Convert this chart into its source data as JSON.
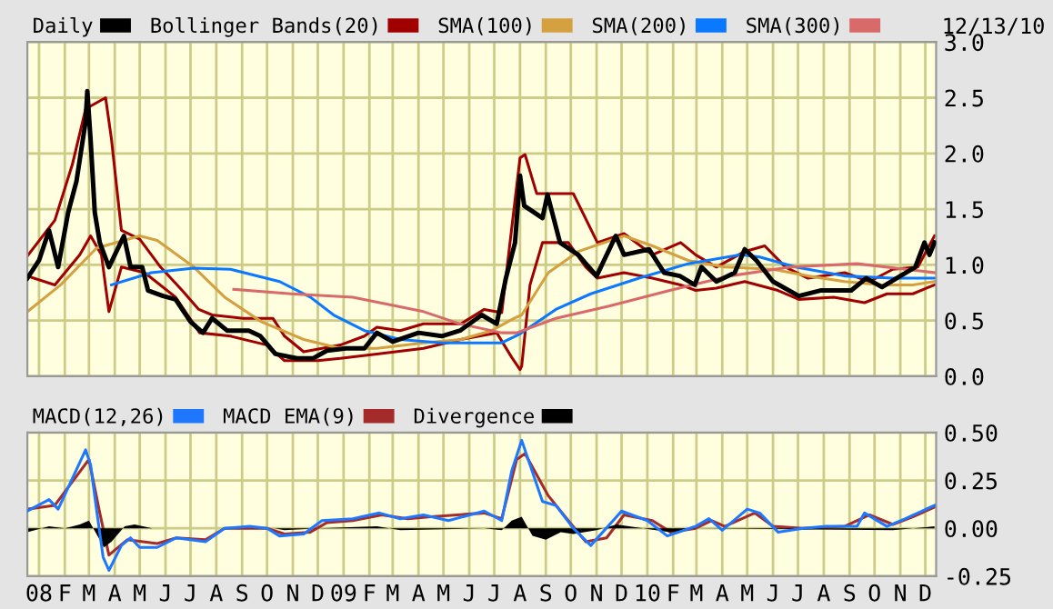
{
  "chart_data": [
    {
      "type": "line",
      "xlim": [
        "2007-12-18",
        "2010-12-14"
      ],
      "ylim": [
        0,
        3
      ],
      "yticks": [
        {
          "value": 0,
          "label": "0.0"
        },
        {
          "value": 0.5,
          "label": "0.5"
        },
        {
          "value": 1,
          "label": "1.0"
        },
        {
          "value": 1.5,
          "label": "1.5"
        },
        {
          "value": 2,
          "label": "2.0"
        },
        {
          "value": 2.5,
          "label": "2.5"
        },
        {
          "value": 3,
          "label": "3.0"
        }
      ],
      "xticks": [
        {
          "value": "2008-01-01",
          "label": null
        },
        {
          "value": "2008-02-01",
          "label": null
        },
        {
          "value": "2008-03-01",
          "label": null
        },
        {
          "value": "2008-04-01",
          "label": null
        },
        {
          "value": "2008-05-01",
          "label": null
        },
        {
          "value": "2008-06-01",
          "label": null
        },
        {
          "value": "2008-07-01",
          "label": null
        },
        {
          "value": "2008-08-01",
          "label": null
        },
        {
          "value": "2008-09-01",
          "label": null
        },
        {
          "value": "2008-10-01",
          "label": null
        },
        {
          "value": "2008-11-01",
          "label": null
        },
        {
          "value": "2008-12-01",
          "label": null
        },
        {
          "value": "2009-01-01",
          "label": null
        },
        {
          "value": "2009-02-01",
          "label": null
        },
        {
          "value": "2009-03-01",
          "label": null
        },
        {
          "value": "2009-04-01",
          "label": null
        },
        {
          "value": "2009-05-01",
          "label": null
        },
        {
          "value": "2009-06-01",
          "label": null
        },
        {
          "value": "2009-07-01",
          "label": null
        },
        {
          "value": "2009-08-01",
          "label": null
        },
        {
          "value": "2009-09-01",
          "label": null
        },
        {
          "value": "2009-10-01",
          "label": null
        },
        {
          "value": "2009-11-01",
          "label": null
        },
        {
          "value": "2009-12-01",
          "label": null
        },
        {
          "value": "2010-01-01",
          "label": null
        },
        {
          "value": "2010-02-01",
          "label": null
        },
        {
          "value": "2010-03-01",
          "label": null
        },
        {
          "value": "2010-04-01",
          "label": null
        },
        {
          "value": "2010-05-01",
          "label": null
        },
        {
          "value": "2010-06-01",
          "label": null
        },
        {
          "value": "2010-07-01",
          "label": null
        },
        {
          "value": "2010-08-01",
          "label": null
        },
        {
          "value": "2010-09-01",
          "label": null
        },
        {
          "value": "2010-10-01",
          "label": null
        },
        {
          "value": "2010-11-01",
          "label": null
        },
        {
          "value": "2010-12-01",
          "label": null
        }
      ],
      "tick_labels": "y",
      "grid": true,
      "legend": "top left",
      "annotations": [
        "12/13/10"
      ],
      "series": [
        {
          "name": "Daily",
          "color": "#000000",
          "x": [
            "2007-12-18",
            "2008-01-01",
            "2008-01-13",
            "2008-01-24",
            "2008-02-05",
            "2008-02-15",
            "2008-02-26",
            "2008-02-28",
            "2008-03-03",
            "2008-03-08",
            "2008-03-14",
            "2008-03-25",
            "2008-04-12",
            "2008-04-20",
            "2008-05-04",
            "2008-05-11",
            "2008-05-29",
            "2008-06-13",
            "2008-07-01",
            "2008-07-16",
            "2008-07-27",
            "2008-08-14",
            "2008-09-09",
            "2008-09-23",
            "2008-10-11",
            "2008-11-06",
            "2008-11-25",
            "2008-12-12",
            "2009-01-04",
            "2009-01-26",
            "2009-02-10",
            "2009-03-01",
            "2009-04-01",
            "2009-04-29",
            "2009-05-21",
            "2009-06-16",
            "2009-07-04",
            "2009-07-15",
            "2009-07-26",
            "2009-08-01",
            "2009-08-06",
            "2009-08-28",
            "2009-09-03",
            "2009-09-18",
            "2009-10-10",
            "2009-11-01",
            "2009-11-24",
            "2009-12-04",
            "2010-01-03",
            "2010-01-21",
            "2010-02-09",
            "2010-02-27",
            "2010-03-07",
            "2010-03-25",
            "2010-04-16",
            "2010-04-28",
            "2010-05-12",
            "2010-06-01",
            "2010-07-02",
            "2010-07-28",
            "2010-09-03",
            "2010-09-21",
            "2010-10-10",
            "2010-11-01",
            "2010-11-19",
            "2010-11-30",
            "2010-12-06",
            "2010-12-12"
          ],
          "values": [
            0.88,
            1.04,
            1.31,
            0.98,
            1.47,
            1.75,
            2.29,
            2.56,
            2.12,
            1.47,
            1.2,
            0.98,
            1.26,
            0.98,
            0.98,
            0.77,
            0.72,
            0.69,
            0.49,
            0.39,
            0.52,
            0.41,
            0.41,
            0.36,
            0.2,
            0.16,
            0.16,
            0.23,
            0.25,
            0.25,
            0.39,
            0.31,
            0.39,
            0.36,
            0.41,
            0.55,
            0.47,
            0.88,
            1.2,
            1.8,
            1.53,
            1.42,
            1.63,
            1.2,
            1.09,
            0.9,
            1.26,
            1.09,
            1.14,
            0.93,
            0.9,
            0.82,
            0.98,
            0.85,
            0.93,
            1.14,
            1.04,
            0.85,
            0.72,
            0.77,
            0.77,
            0.88,
            0.8,
            0.9,
            0.98,
            1.2,
            1.09,
            1.2
          ]
        },
        {
          "name": "Bollinger Bands(20)",
          "color": "#a00000",
          "x": [
            "2007-12-18",
            "2008-01-20",
            "2008-02-10",
            "2008-02-26",
            "2008-03-21",
            "2008-03-28",
            "2008-04-09",
            "2008-05-01",
            "2008-05-26",
            "2008-06-21",
            "2008-07-11",
            "2008-07-27",
            "2008-09-02",
            "2008-10-08",
            "2008-10-22",
            "2008-11-14",
            "2008-12-28",
            "2009-01-26",
            "2009-02-10",
            "2009-03-10",
            "2009-04-07",
            "2009-05-22",
            "2009-06-19",
            "2009-07-10",
            "2009-08-01",
            "2009-08-07",
            "2009-08-21",
            "2009-10-04",
            "2009-11-02",
            "2009-12-04",
            "2010-01-07",
            "2010-02-10",
            "2010-02-28",
            "2010-03-25",
            "2010-04-28",
            "2010-05-22",
            "2010-06-16",
            "2010-07-13",
            "2010-08-26",
            "2010-09-25",
            "2010-10-23",
            "2010-11-22",
            "2010-12-12"
          ],
          "values": [
            1.08,
            1.4,
            1.9,
            2.4,
            2.5,
            2.13,
            1.31,
            1.23,
            0.98,
            0.77,
            0.6,
            0.55,
            0.52,
            0.52,
            0.36,
            0.22,
            0.28,
            0.36,
            0.44,
            0.41,
            0.47,
            0.47,
            0.6,
            0.57,
            1.96,
            1.99,
            1.64,
            1.64,
            1.2,
            1.28,
            1.09,
            1.2,
            1.09,
            0.98,
            1.12,
            1.17,
            0.98,
            0.88,
            0.93,
            0.85,
            0.96,
            0.98,
            1.26
          ]
        },
        {
          "color": "#a00000",
          "x": [
            "2007-12-18",
            "2008-01-20",
            "2008-02-19",
            "2008-03-03",
            "2008-03-16",
            "2008-03-25",
            "2008-04-09",
            "2008-05-07",
            "2008-06-13",
            "2008-07-12",
            "2008-08-18",
            "2008-10-01",
            "2008-10-22",
            "2008-12-01",
            "2008-12-28",
            "2009-02-10",
            "2009-04-07",
            "2009-05-22",
            "2009-07-04",
            "2009-07-22",
            "2009-08-01",
            "2009-08-03",
            "2009-08-13",
            "2009-08-28",
            "2009-09-28",
            "2009-10-19",
            "2009-11-02",
            "2009-12-04",
            "2010-01-07",
            "2010-02-10",
            "2010-02-28",
            "2010-03-25",
            "2010-04-28",
            "2010-06-07",
            "2010-07-02",
            "2010-08-13",
            "2010-09-19",
            "2010-10-16",
            "2010-11-16",
            "2010-12-12"
          ],
          "values": [
            0.9,
            0.82,
            1.09,
            1.26,
            1.09,
            0.58,
            0.98,
            0.93,
            0.71,
            0.39,
            0.36,
            0.28,
            0.14,
            0.14,
            0.16,
            0.2,
            0.25,
            0.33,
            0.39,
            0.17,
            0.06,
            0.09,
            0.82,
            1.2,
            1.2,
            0.98,
            0.88,
            0.93,
            0.88,
            0.82,
            0.77,
            0.79,
            0.85,
            0.77,
            0.69,
            0.71,
            0.66,
            0.74,
            0.74,
            0.82
          ]
        },
        {
          "name": "SMA(100)",
          "color": "#d4a040",
          "x": [
            "2007-12-18",
            "2008-01-27",
            "2008-03-10",
            "2008-05-01",
            "2008-05-22",
            "2008-07-05",
            "2008-08-11",
            "2008-09-24",
            "2008-11-14",
            "2008-12-28",
            "2009-02-10",
            "2009-04-07",
            "2009-05-22",
            "2009-06-28",
            "2009-07-25",
            "2009-08-03",
            "2009-09-04",
            "2009-10-10",
            "2009-12-04",
            "2010-01-07",
            "2010-02-19",
            "2010-04-04",
            "2010-06-01",
            "2010-07-13",
            "2010-08-26",
            "2010-10-10",
            "2010-11-16",
            "2010-12-12"
          ],
          "values": [
            0.58,
            0.82,
            1.15,
            1.26,
            1.22,
            0.98,
            0.71,
            0.49,
            0.33,
            0.25,
            0.25,
            0.3,
            0.33,
            0.41,
            0.52,
            0.55,
            0.93,
            1.12,
            1.26,
            1.17,
            1.04,
            0.98,
            0.96,
            0.9,
            0.85,
            0.82,
            0.82,
            0.85
          ]
        },
        {
          "name": "SMA(200)",
          "color": "#0a78ff",
          "x": [
            "2008-03-28",
            "2008-05-15",
            "2008-07-05",
            "2008-08-18",
            "2008-10-16",
            "2008-11-22",
            "2008-12-20",
            "2009-01-26",
            "2009-03-10",
            "2009-04-29",
            "2009-07-10",
            "2009-08-01",
            "2009-09-13",
            "2009-10-25",
            "2009-12-22",
            "2010-02-19",
            "2010-04-23",
            "2010-05-16",
            "2010-06-28",
            "2010-08-26",
            "2010-10-23",
            "2010-12-12"
          ],
          "values": [
            0.82,
            0.93,
            0.97,
            0.96,
            0.85,
            0.71,
            0.55,
            0.41,
            0.33,
            0.3,
            0.3,
            0.38,
            0.6,
            0.74,
            0.88,
            1.01,
            1.09,
            1.07,
            0.98,
            0.9,
            0.88,
            0.88
          ]
        },
        {
          "name": "SMA(300)",
          "color": "#d86a6a",
          "x": [
            "2008-08-22",
            "2008-10-30",
            "2009-01-12",
            "2009-04-07",
            "2009-05-21",
            "2009-07-10",
            "2009-07-28",
            "2009-09-13",
            "2009-11-16",
            "2010-01-28",
            "2010-04-10",
            "2010-06-22",
            "2010-09-10",
            "2010-12-12"
          ],
          "values": [
            0.78,
            0.74,
            0.71,
            0.58,
            0.47,
            0.39,
            0.39,
            0.52,
            0.63,
            0.77,
            0.9,
            0.98,
            1.01,
            0.93
          ]
        }
      ]
    },
    {
      "type": "line",
      "xlim": [
        "2007-12-18",
        "2010-12-14"
      ],
      "ylim": [
        -0.25,
        0.5
      ],
      "yticks": [
        {
          "value": -0.25,
          "label": "-0.25"
        },
        {
          "value": 0,
          "label": "0.00"
        },
        {
          "value": 0.25,
          "label": "0.25"
        },
        {
          "value": 0.5,
          "label": "0.50"
        }
      ],
      "xticks": [
        {
          "value": "2008-01-01",
          "label": "08"
        },
        {
          "value": "2008-02-01",
          "label": "F"
        },
        {
          "value": "2008-03-01",
          "label": "M"
        },
        {
          "value": "2008-04-01",
          "label": "A"
        },
        {
          "value": "2008-05-01",
          "label": "M"
        },
        {
          "value": "2008-06-01",
          "label": "J"
        },
        {
          "value": "2008-07-01",
          "label": "J"
        },
        {
          "value": "2008-08-01",
          "label": "A"
        },
        {
          "value": "2008-09-01",
          "label": "S"
        },
        {
          "value": "2008-10-01",
          "label": "O"
        },
        {
          "value": "2008-11-01",
          "label": "N"
        },
        {
          "value": "2008-12-01",
          "label": "D"
        },
        {
          "value": "2009-01-01",
          "label": "09"
        },
        {
          "value": "2009-02-01",
          "label": "F"
        },
        {
          "value": "2009-03-01",
          "label": "M"
        },
        {
          "value": "2009-04-01",
          "label": "A"
        },
        {
          "value": "2009-05-01",
          "label": "M"
        },
        {
          "value": "2009-06-01",
          "label": "J"
        },
        {
          "value": "2009-07-01",
          "label": "J"
        },
        {
          "value": "2009-08-01",
          "label": "A"
        },
        {
          "value": "2009-09-01",
          "label": "S"
        },
        {
          "value": "2009-10-01",
          "label": "O"
        },
        {
          "value": "2009-11-01",
          "label": "N"
        },
        {
          "value": "2009-12-01",
          "label": "D"
        },
        {
          "value": "2010-01-01",
          "label": "10"
        },
        {
          "value": "2010-02-01",
          "label": "F"
        },
        {
          "value": "2010-03-01",
          "label": "M"
        },
        {
          "value": "2010-04-01",
          "label": "A"
        },
        {
          "value": "2010-05-01",
          "label": "M"
        },
        {
          "value": "2010-06-01",
          "label": "J"
        },
        {
          "value": "2010-07-01",
          "label": "J"
        },
        {
          "value": "2010-08-01",
          "label": "A"
        },
        {
          "value": "2010-09-01",
          "label": "S"
        },
        {
          "value": "2010-10-01",
          "label": "O"
        },
        {
          "value": "2010-11-01",
          "label": "N"
        },
        {
          "value": "2010-12-01",
          "label": "D"
        }
      ],
      "grid": true,
      "legend": "top left",
      "series": [
        {
          "name": "MACD(12,26)",
          "color": "#1e78ff",
          "x": [
            "2007-12-18",
            "2008-01-13",
            "2008-01-24",
            "2008-02-26",
            "2008-03-03",
            "2008-03-10",
            "2008-03-18",
            "2008-03-25",
            "2008-04-09",
            "2008-04-20",
            "2008-05-01",
            "2008-05-22",
            "2008-06-14",
            "2008-07-19",
            "2008-08-11",
            "2008-09-10",
            "2008-10-01",
            "2008-10-16",
            "2008-11-14",
            "2008-12-06",
            "2009-01-12",
            "2009-02-13",
            "2009-03-10",
            "2009-04-07",
            "2009-05-07",
            "2009-06-19",
            "2009-07-10",
            "2009-07-22",
            "2009-08-03",
            "2009-08-28",
            "2009-09-13",
            "2009-10-04",
            "2009-10-25",
            "2009-11-25",
            "2009-12-01",
            "2010-01-01",
            "2010-01-25",
            "2010-02-28",
            "2010-03-16",
            "2010-04-01",
            "2010-05-01",
            "2010-05-16",
            "2010-06-07",
            "2010-07-07",
            "2010-08-04",
            "2010-09-10",
            "2010-09-19",
            "2010-10-16",
            "2010-11-07",
            "2010-12-12"
          ],
          "values": [
            0.09,
            0.15,
            0.1,
            0.41,
            0.33,
            0.1,
            -0.15,
            -0.22,
            -0.09,
            -0.05,
            -0.1,
            -0.1,
            -0.05,
            -0.07,
            0.0,
            0.01,
            0.0,
            -0.04,
            -0.03,
            0.04,
            0.05,
            0.08,
            0.05,
            0.07,
            0.04,
            0.09,
            0.04,
            0.3,
            0.46,
            0.14,
            0.12,
            0.0,
            -0.09,
            0.06,
            0.09,
            0.04,
            -0.04,
            0.01,
            0.05,
            -0.01,
            0.1,
            0.08,
            -0.02,
            0.0,
            0.01,
            0.01,
            0.08,
            0.01,
            0.05,
            0.12
          ]
        },
        {
          "name": "MACD EMA(9)",
          "color": "#a52a2a",
          "x": [
            "2007-12-18",
            "2008-01-20",
            "2008-03-01",
            "2008-03-14",
            "2008-03-25",
            "2008-04-16",
            "2008-05-22",
            "2008-06-14",
            "2008-07-19",
            "2008-08-11",
            "2008-10-01",
            "2008-10-22",
            "2008-11-22",
            "2008-12-12",
            "2009-01-12",
            "2009-02-16",
            "2009-03-19",
            "2009-04-16",
            "2009-06-19",
            "2009-07-10",
            "2009-07-28",
            "2009-08-07",
            "2009-09-04",
            "2009-09-28",
            "2009-10-19",
            "2009-11-13",
            "2009-12-04",
            "2010-01-07",
            "2010-01-29",
            "2010-02-28",
            "2010-03-19",
            "2010-04-04",
            "2010-05-10",
            "2010-06-01",
            "2010-07-07",
            "2010-08-26",
            "2010-09-25",
            "2010-10-23",
            "2010-11-16",
            "2010-12-12"
          ],
          "values": [
            0.1,
            0.12,
            0.36,
            0.08,
            -0.14,
            -0.06,
            -0.08,
            -0.05,
            -0.06,
            0.0,
            0.0,
            -0.03,
            -0.02,
            0.03,
            0.04,
            0.07,
            0.05,
            0.06,
            0.08,
            0.05,
            0.36,
            0.39,
            0.17,
            0.04,
            -0.07,
            -0.05,
            0.07,
            0.04,
            -0.02,
            0.0,
            0.04,
            0.01,
            0.08,
            0.01,
            0.0,
            0.01,
            0.07,
            0.02,
            0.06,
            0.11
          ]
        },
        {
          "name": "Divergence",
          "type": "area",
          "color": "#000000",
          "x": [
            "2007-12-18",
            "2008-01-13",
            "2008-02-01",
            "2008-02-19",
            "2008-03-01",
            "2008-03-10",
            "2008-03-19",
            "2008-03-28",
            "2008-04-13",
            "2008-04-25",
            "2008-05-16",
            "2008-07-01",
            "2008-10-10",
            "2008-10-22",
            "2008-12-01",
            "2009-02-10",
            "2009-03-10",
            "2009-06-19",
            "2009-07-10",
            "2009-07-22",
            "2009-08-03",
            "2009-08-16",
            "2009-09-01",
            "2009-09-19",
            "2009-10-04",
            "2009-11-01",
            "2009-11-25",
            "2010-01-28",
            "2010-03-01",
            "2010-10-23",
            "2010-12-12"
          ],
          "values": [
            -0.02,
            0.01,
            0.0,
            0.02,
            0.04,
            -0.03,
            -0.1,
            -0.07,
            0.01,
            0.02,
            0.0,
            0.0,
            0.0,
            -0.01,
            0.0,
            0.01,
            -0.01,
            0.0,
            -0.01,
            0.04,
            0.06,
            -0.04,
            -0.06,
            -0.02,
            -0.03,
            -0.01,
            0.02,
            -0.02,
            0.0,
            -0.01,
            0.01
          ]
        }
      ]
    }
  ]
}
